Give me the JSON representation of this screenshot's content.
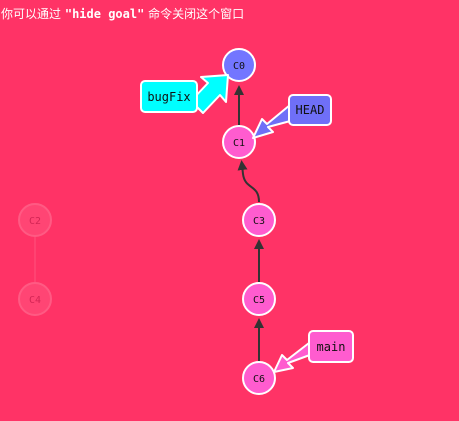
{
  "hint": {
    "prefix": "你可以通过",
    "command": "\"hide goal\"",
    "suffix": "命令关闭这个窗口"
  },
  "commits": {
    "c0": "C0",
    "c1": "C1",
    "c3": "C3",
    "c5": "C5",
    "c6": "C6",
    "c2": "C2",
    "c4": "C4"
  },
  "refs": {
    "bugfix": "bugFix",
    "head": "HEAD",
    "main": "main"
  },
  "colors": {
    "background": "#ff3366",
    "commit_fill": "#ff5ccf",
    "commit_fill_root": "#7376ff",
    "ghost_commit": "#ff5c86",
    "bugfix_branch": "#00ffff",
    "head_ref": "#6f6ff7",
    "main_branch": "#ff5ccf",
    "edge": "#333333"
  }
}
